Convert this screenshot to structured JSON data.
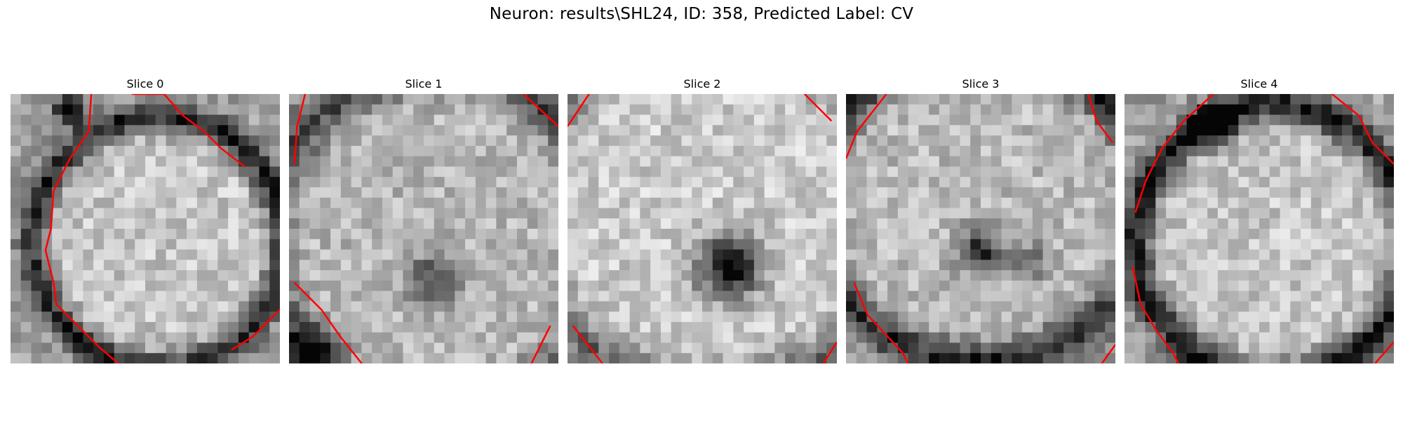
{
  "figure": {
    "title": "Neuron: results\\SHL24, ID: 358, Predicted Label: CV"
  },
  "panels": [
    {
      "title": "Slice 0"
    },
    {
      "title": "Slice 1"
    },
    {
      "title": "Slice 2"
    },
    {
      "title": "Slice 3"
    },
    {
      "title": "Slice 4"
    }
  ],
  "colors": {
    "outline": "#ff0000",
    "background": "#ffffff"
  },
  "image_style": {
    "colormap": "gray",
    "grid": "26x26 pixelated grayscale micrograph tiles",
    "axes": "off"
  }
}
